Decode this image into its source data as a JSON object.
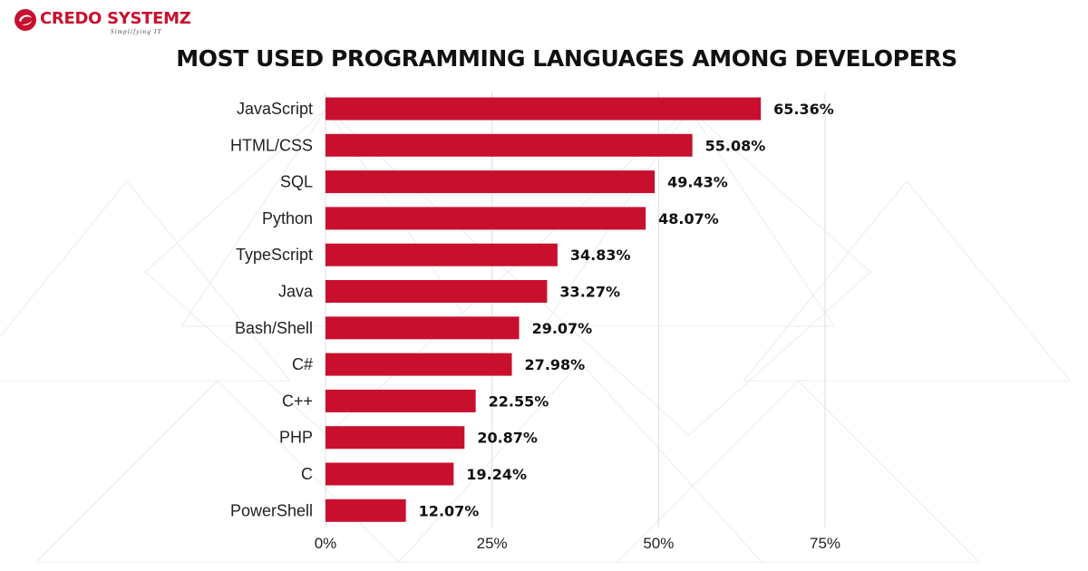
{
  "brand": {
    "name": "CREDO SYSTEMZ",
    "tagline": "Simplifying IT",
    "color": "#c8102e",
    "logo_icon": "credo-swirl-icon"
  },
  "chart_data": {
    "type": "bar",
    "orientation": "horizontal",
    "title": "MOST USED PROGRAMMING LANGUAGES AMONG DEVELOPERS",
    "categories": [
      "JavaScript",
      "HTML/CSS",
      "SQL",
      "Python",
      "TypeScript",
      "Java",
      "Bash/Shell",
      "C#",
      "C++",
      "PHP",
      "C",
      "PowerShell"
    ],
    "values": [
      65.36,
      55.08,
      49.43,
      48.07,
      34.83,
      33.27,
      29.07,
      27.98,
      22.55,
      20.87,
      19.24,
      12.07
    ],
    "data_labels": [
      "65.36%",
      "55.08%",
      "49.43%",
      "48.07%",
      "34.83%",
      "33.27%",
      "29.07%",
      "27.98%",
      "22.55%",
      "20.87%",
      "19.24%",
      "12.07%"
    ],
    "xlim": [
      0,
      75
    ],
    "xticks": [
      0,
      25,
      50,
      75
    ],
    "xtick_labels": [
      "0%",
      "25%",
      "50%",
      "75%"
    ],
    "xlabel": "",
    "ylabel": "",
    "grid": "vertical",
    "legend": "none",
    "bar_color": "#c8102e"
  }
}
